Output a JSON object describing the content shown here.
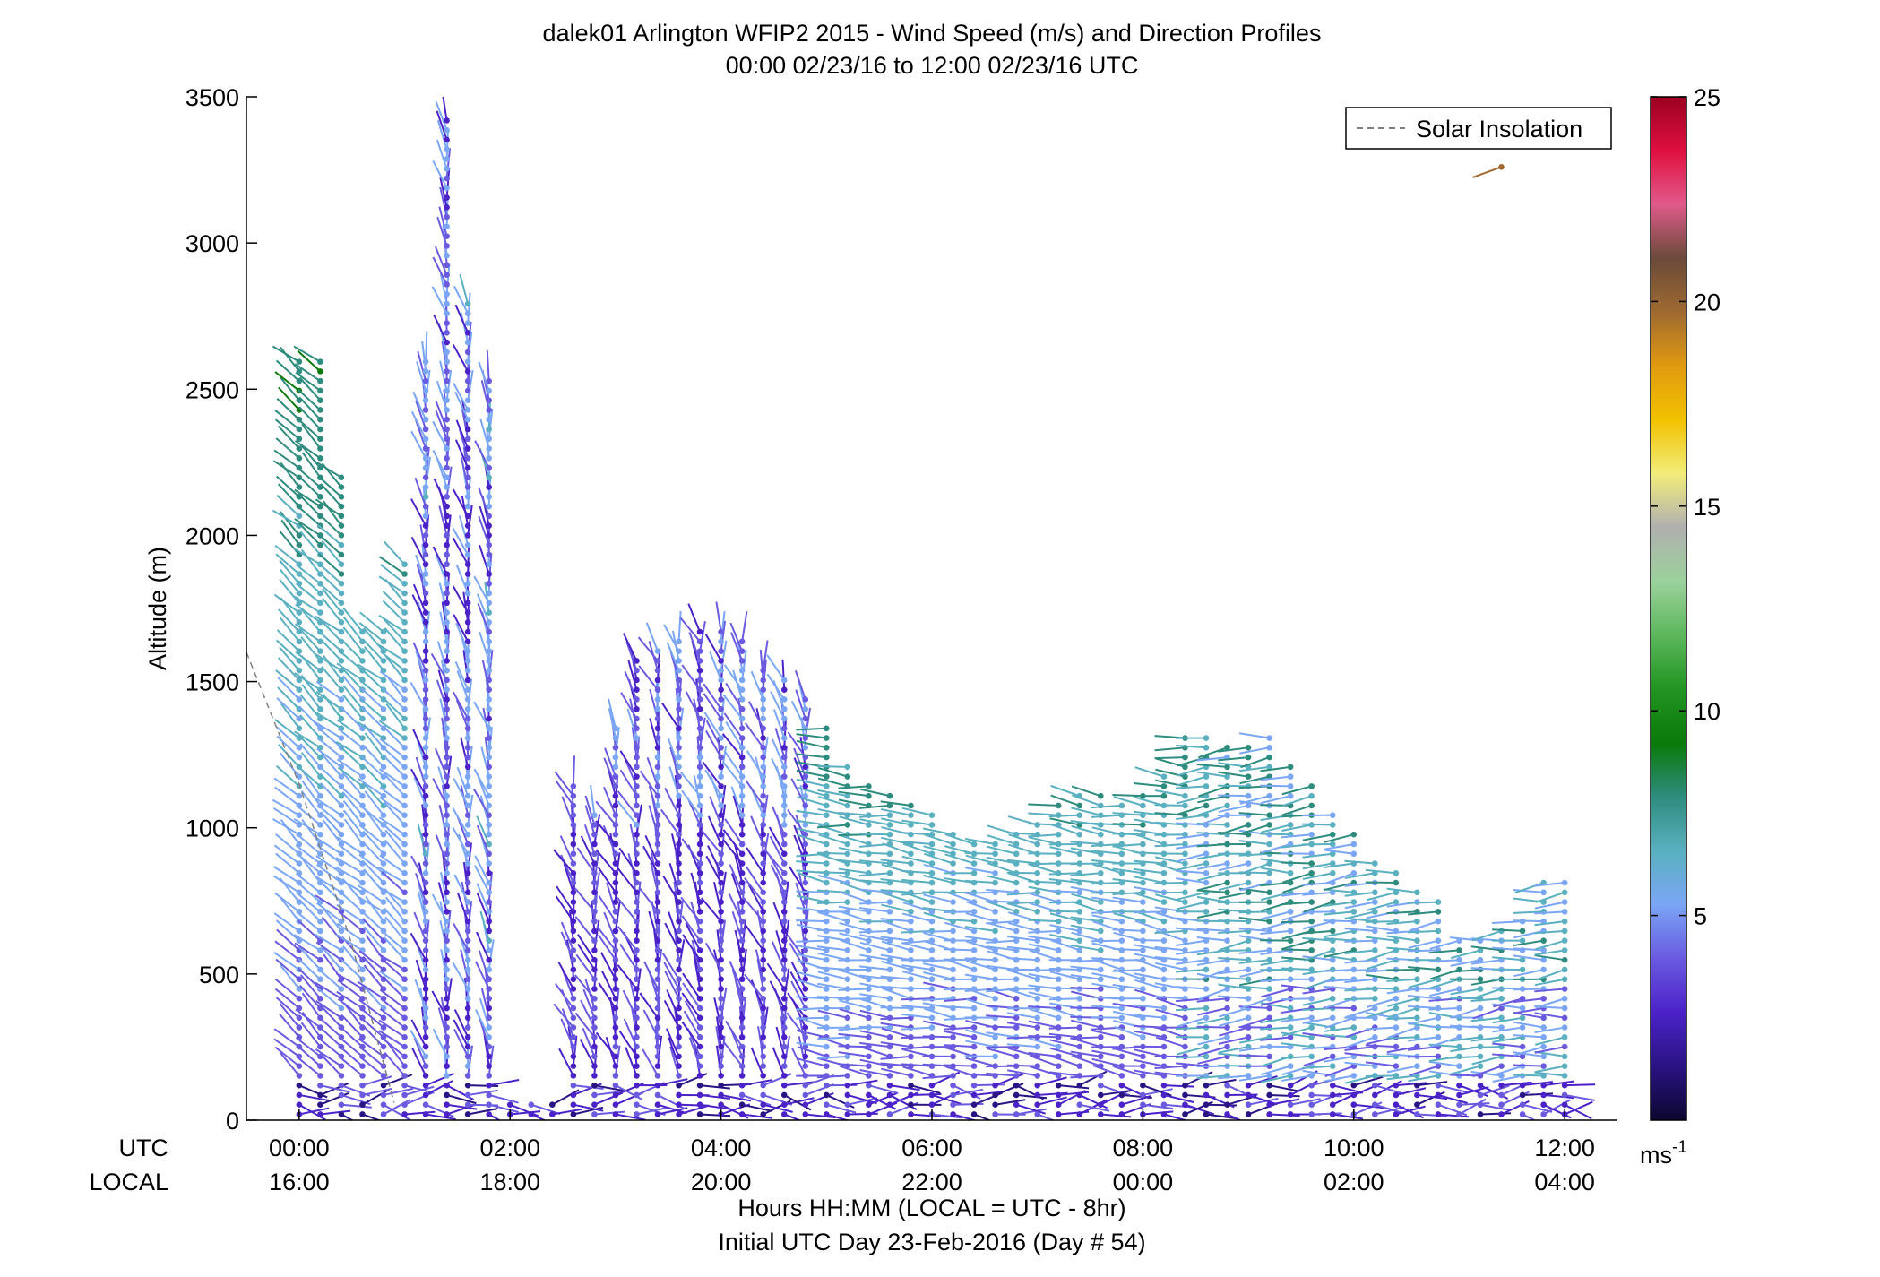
{
  "chart_data": {
    "type": "wind_barb_profile",
    "title_line1": "dalek01 Arlington WFIP2 2015 - Wind Speed (m/s) and Direction Profiles",
    "title_line2": "00:00 02/23/16 to 12:00 02/23/16  UTC",
    "ylabel": "Altitude (m)",
    "ylim": [
      0,
      3500
    ],
    "yticks": [
      0,
      500,
      1000,
      1500,
      2000,
      2500,
      3000,
      3500
    ],
    "xlim_hours": [
      -0.5,
      12.5
    ],
    "xticks_hours": [
      0,
      2,
      4,
      6,
      8,
      10,
      12
    ],
    "utc_label": "UTC",
    "local_label": "LOCAL",
    "utc_tick_labels": [
      "00:00",
      "02:00",
      "04:00",
      "06:00",
      "08:00",
      "10:00",
      "12:00"
    ],
    "local_tick_labels": [
      "16:00",
      "18:00",
      "20:00",
      "22:00",
      "00:00",
      "02:00",
      "04:00"
    ],
    "xlabel_line1": "Hours HH:MM  (LOCAL = UTC - 8hr)",
    "xlabel_line2": "Initial UTC Day 23-Feb-2016 (Day # 54)",
    "legend": {
      "label": "Solar Insolation",
      "placement": "top-right",
      "line_color": "#808080",
      "line_style": "dashed"
    },
    "colorbar": {
      "range": [
        0,
        25
      ],
      "ticks": [
        5,
        10,
        15,
        20,
        25
      ],
      "unit_label": "ms",
      "unit_exponent": "-1",
      "colors": [
        "#0d0630",
        "#2a1484",
        "#4b22c8",
        "#6a5ae0",
        "#7aa6f5",
        "#5ab0c0",
        "#2e8c7e",
        "#0a7a0a",
        "#219421",
        "#5cb85c",
        "#9bd19b",
        "#b0b0b0",
        "#f2ed7a",
        "#f2c200",
        "#e09a10",
        "#a06a30",
        "#6a4a3a",
        "#e05a8a",
        "#e01040",
        "#9a0020"
      ]
    },
    "solar_insolation_curve": {
      "hours": [
        -0.5,
        0.0,
        0.5,
        0.9
      ],
      "altitude_m": [
        1600,
        1150,
        600,
        60
      ]
    },
    "profile_times_hours": [
      0,
      0.2,
      0.4,
      0.6,
      0.8,
      1.0,
      1.2,
      1.4,
      1.6,
      1.8,
      2.0,
      2.2,
      2.4,
      2.6,
      2.8,
      3.0,
      3.2,
      3.4,
      3.6,
      3.8,
      4.0,
      4.2,
      4.4,
      4.6,
      4.8,
      5.0,
      5.2,
      5.4,
      5.6,
      5.8,
      6.0,
      6.2,
      6.4,
      6.6,
      6.8,
      7.0,
      7.2,
      7.4,
      7.6,
      7.8,
      8.0,
      8.2,
      8.4,
      8.6,
      8.8,
      9.0,
      9.2,
      9.4,
      9.6,
      9.8,
      10.0,
      10.2,
      10.4,
      10.6,
      10.8,
      11.0,
      11.2,
      11.4,
      11.6,
      11.8,
      12.0
    ],
    "profile_top_altitude_m": [
      2620,
      2600,
      2220,
      1700,
      1700,
      1930,
      2600,
      3430,
      2800,
      2550,
      70,
      70,
      70,
      1170,
      1050,
      1350,
      1580,
      1620,
      1640,
      1670,
      1680,
      1640,
      1550,
      1530,
      1460,
      1350,
      1230,
      1160,
      1130,
      1100,
      1060,
      1000,
      960,
      960,
      990,
      1030,
      1080,
      1120,
      1120,
      1100,
      1130,
      1180,
      1320,
      1330,
      1300,
      1280,
      1330,
      1230,
      1150,
      1050,
      1000,
      900,
      850,
      790,
      770,
      640,
      640,
      650,
      700,
      830,
      830
    ],
    "isolated_points": [
      {
        "hour": 11.4,
        "altitude_m": 3260,
        "speed_ms": 20,
        "direction_deg": 250
      }
    ]
  }
}
